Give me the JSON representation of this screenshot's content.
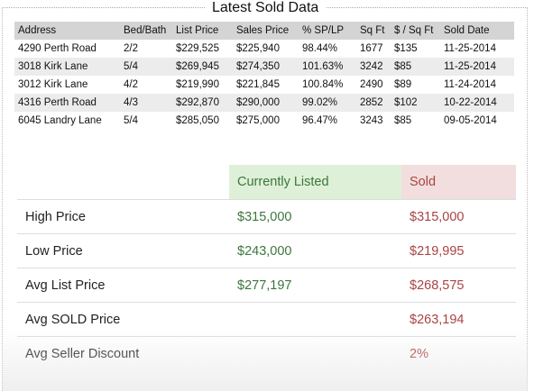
{
  "title": "Latest Sold Data",
  "sold_table": {
    "headers": [
      "Address",
      "Bed/Bath",
      "List Price",
      "Sales Price",
      "% SP/LP",
      "Sq Ft",
      "$ / Sq Ft",
      "Sold Date"
    ],
    "rows": [
      [
        "4290 Perth Road",
        "2/2",
        "$229,525",
        "$225,940",
        "98.44%",
        "1677",
        "$135",
        "11-25-2014"
      ],
      [
        "3018 Kirk Lane",
        "5/4",
        "$269,945",
        "$274,350",
        "101.63%",
        "3242",
        "$85",
        "11-25-2014"
      ],
      [
        "3012 Kirk Lane",
        "4/2",
        "$219,990",
        "$221,845",
        "100.84%",
        "2490",
        "$89",
        "11-24-2014"
      ],
      [
        "4316 Perth Road",
        "4/3",
        "$292,870",
        "$290,000",
        "99.02%",
        "2852",
        "$102",
        "10-22-2014"
      ],
      [
        "6045 Landry Lane",
        "5/4",
        "$285,050",
        "$275,000",
        "96.47%",
        "3243",
        "$85",
        "09-05-2014"
      ]
    ]
  },
  "summary": {
    "col_listed": "Currently Listed",
    "col_sold": "Sold",
    "rows": [
      {
        "label": "High Price",
        "listed": "$315,000",
        "sold": "$315,000"
      },
      {
        "label": "Low Price",
        "listed": "$243,000",
        "sold": "$219,995"
      },
      {
        "label": "Avg List Price",
        "listed": "$277,197",
        "sold": "$268,575"
      },
      {
        "label": "Avg SOLD Price",
        "listed": "",
        "sold": "$263,194"
      },
      {
        "label": "Avg Seller Discount",
        "listed": "",
        "sold": "2%"
      }
    ]
  },
  "colors": {
    "listed_text": "#3c763d",
    "listed_bg": "#dff0d8",
    "sold_text": "#a94442",
    "sold_bg": "#f2dede",
    "table_header_bg": "#d4d4d4",
    "stripe_bg": "#ececec"
  }
}
